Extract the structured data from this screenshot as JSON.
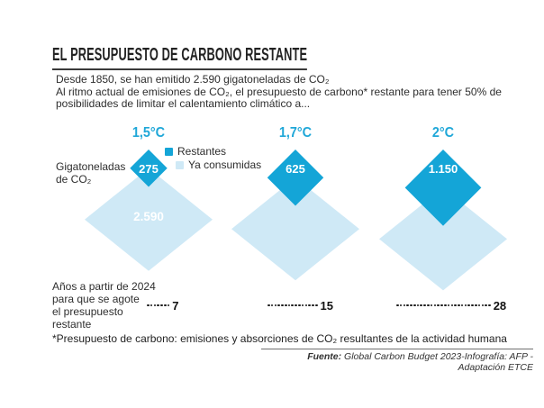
{
  "header": {
    "title": "EL PRESUPUESTO DE CARBONO RESTANTE",
    "intro_line1": "Desde 1850, se han emitido 2.590 gigatoneladas de CO₂",
    "intro_rest": "Al ritmo actual de emisiones de CO₂, el presupuesto de carbono* restante para tener 50% de\nposibilidades de limitar el calentamiento climático a..."
  },
  "chart_data": {
    "type": "area",
    "subtype": "proportional-area-diamonds",
    "title": "EL PRESUPUESTO DE CARBONO RESTANTE",
    "unit_label": "Gigatoneladas\nde CO₂",
    "consumed_total": 2590,
    "consumed_label": "2.590",
    "legend": [
      {
        "label": "Restantes",
        "color": "#14a5d7"
      },
      {
        "label": "Ya consumidas",
        "color": "#cfe9f6"
      }
    ],
    "scenarios": [
      {
        "temp": "1,5°C",
        "remaining": 275,
        "remaining_label": "275",
        "years": 7,
        "years_label": "7"
      },
      {
        "temp": "1,7°C",
        "remaining": 625,
        "remaining_label": "625",
        "years": 15,
        "years_label": "15"
      },
      {
        "temp": "2°C",
        "remaining": 1150,
        "remaining_label": "1.150",
        "years": 28,
        "years_label": "28"
      }
    ],
    "years_axis_label": "Años a partir de 2024\npara que se agote\nel presupuesto\nrestante",
    "colors": {
      "remaining": "#14a5d7",
      "consumed": "#cfe9f6",
      "accent_text": "#1fa7d8"
    }
  },
  "footer": {
    "footnote": "*Presupuesto de carbono: emisiones y absorciones de CO₂ resultantes de la actividad humana",
    "source_label": "Fuente:",
    "source_text": " Global Carbon Budget 2023-Infografía: AFP -Adaptación ETCE"
  }
}
